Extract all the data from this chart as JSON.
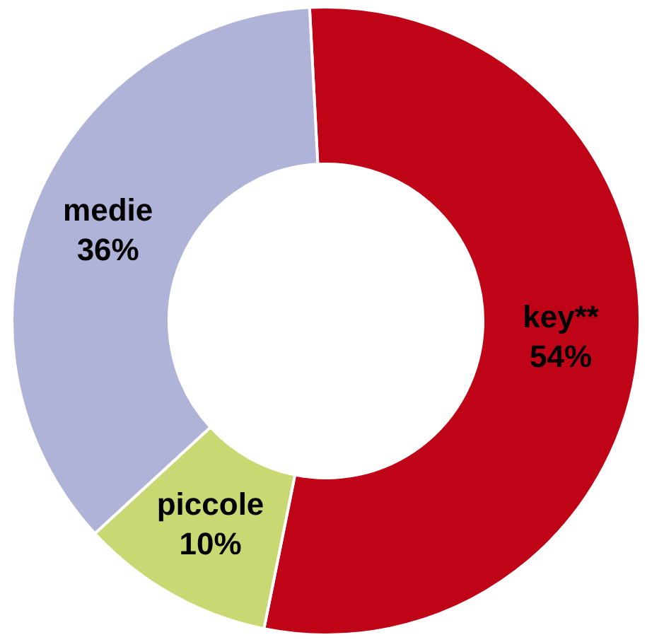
{
  "chart_data": {
    "type": "donut",
    "categories": [
      "key**",
      "piccole",
      "medie"
    ],
    "values": [
      54,
      10,
      36
    ],
    "colors": [
      "#c00418",
      "#c9d873",
      "#b0b3d8"
    ],
    "value_labels": [
      "54%",
      "10%",
      "36%"
    ],
    "legend": false
  }
}
